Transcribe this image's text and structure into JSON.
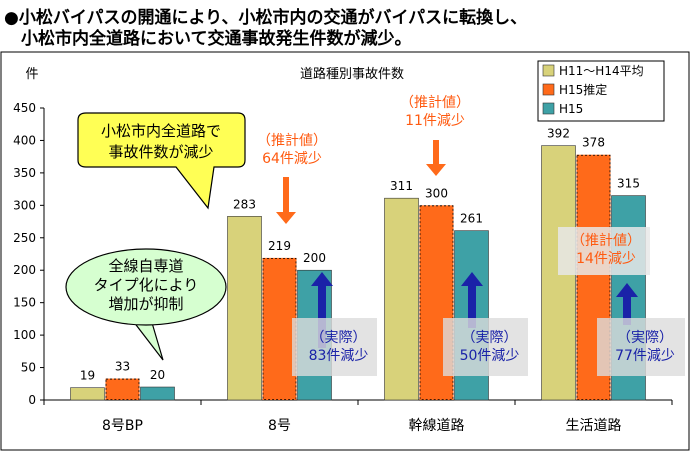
{
  "heading": {
    "line1": "●小松バイパスの開通により、小松市内の交通がバイパスに転換し、",
    "line2": "小松市内全道路において交通事故発生件数が減少。"
  },
  "colors": {
    "avg": "#d8d27a",
    "est": "#ff6a1a",
    "h15": "#3ea1a6",
    "arrow_down": "#ff6a1a",
    "arrow_up": "#1a22a8",
    "est_text": "#ff5a10",
    "actual_text": "#1a22a8",
    "callout_yellow": "#ffff55",
    "callout_green": "#d6ffd0"
  },
  "chart_data": {
    "type": "bar",
    "title": "道路種別事故件数",
    "ylabel": "件",
    "xlabel": "",
    "ylim": [
      0,
      450
    ],
    "yticks": [
      0,
      50,
      100,
      150,
      200,
      250,
      300,
      350,
      400,
      450
    ],
    "grid": false,
    "legend_position": "top-right",
    "categories": [
      "8号BP",
      "8号",
      "幹線道路",
      "生活道路"
    ],
    "series": [
      {
        "name": "H11～H14平均",
        "values": [
          19,
          283,
          311,
          392
        ]
      },
      {
        "name": "H15推定",
        "values": [
          33,
          219,
          300,
          378
        ]
      },
      {
        "name": "H15",
        "values": [
          20,
          200,
          261,
          315
        ]
      }
    ]
  },
  "callouts": {
    "yellow": [
      "小松市内全道路で",
      "事故件数が減少"
    ],
    "green": [
      "全線自専道",
      "タイプ化により",
      "増加が抑制"
    ]
  },
  "annotations": {
    "est_8go": [
      "（推計値）",
      "64件減少"
    ],
    "est_kansen": [
      "（推計値）",
      "11件減少"
    ],
    "est_seikatsu": [
      "（推計値）",
      "14件減少"
    ],
    "act_8go": [
      "（実際）",
      "83件減少"
    ],
    "act_kansen": [
      "（実際）",
      "50件減少"
    ],
    "act_seikatsu": [
      "（実際）",
      "77件減少"
    ]
  }
}
